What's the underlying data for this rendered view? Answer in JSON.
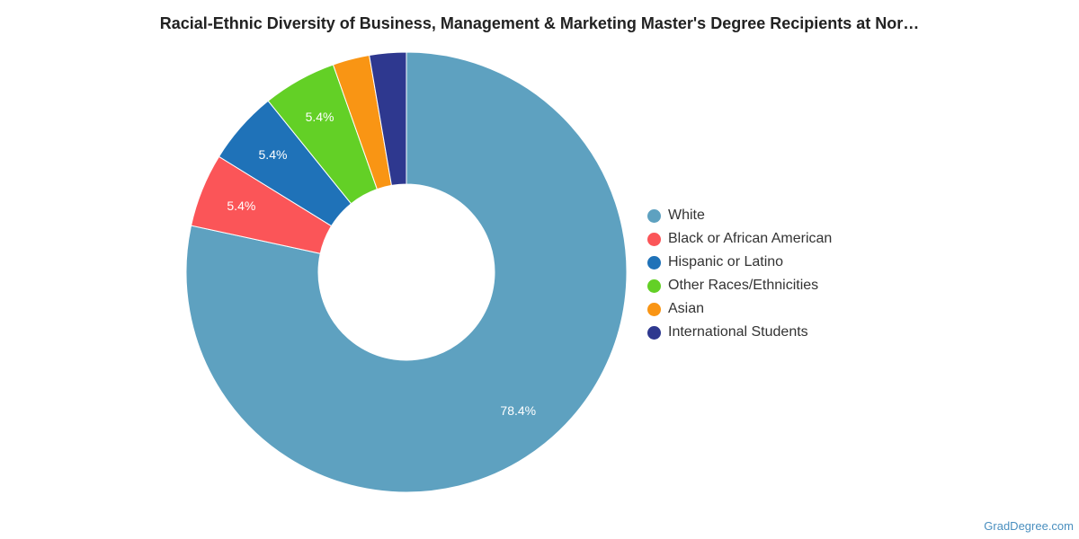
{
  "chart_data": {
    "type": "pie",
    "title": "Racial-Ethnic Diversity of Business, Management & Marketing Master's Degree Recipients at Nor…",
    "donut": true,
    "legend_position": "right",
    "series": [
      {
        "name": "White",
        "value": 78.4,
        "label": "78.4%",
        "color": "#5ea1c0"
      },
      {
        "name": "Black or African American",
        "value": 5.4,
        "label": "5.4%",
        "color": "#fb5558"
      },
      {
        "name": "Hispanic or Latino",
        "value": 5.4,
        "label": "5.4%",
        "color": "#1f72b8"
      },
      {
        "name": "Other Races/Ethnicities",
        "value": 5.4,
        "label": "5.4%",
        "color": "#63d026"
      },
      {
        "name": "Asian",
        "value": 2.7,
        "label": "",
        "color": "#f99514"
      },
      {
        "name": "International Students",
        "value": 2.7,
        "label": "",
        "color": "#2e388f"
      }
    ]
  },
  "watermark": "GradDegree.com"
}
